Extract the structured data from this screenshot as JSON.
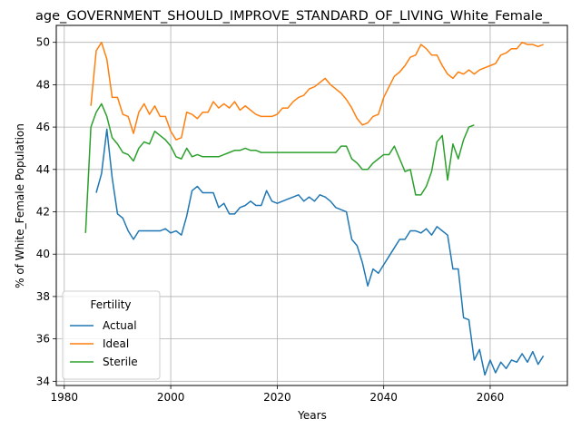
{
  "chart_data": {
    "type": "line",
    "title": "age_GOVERNMENT_SHOULD_IMPROVE_STANDARD_OF_LIVING_White_Female_",
    "xlabel": "Years",
    "ylabel": "% of White_Female Population",
    "xlim": [
      1978.5,
      2074.5
    ],
    "ylim": [
      33.8,
      50.8
    ],
    "xticks": [
      1980,
      2000,
      2020,
      2040,
      2060
    ],
    "yticks": [
      34,
      36,
      38,
      40,
      42,
      44,
      46,
      48,
      50
    ],
    "grid": true,
    "legend": {
      "title": "Fertility",
      "position": "lower-left"
    },
    "series": [
      {
        "name": "Actual",
        "color": "#1f77b4",
        "x": [
          1986,
          1987,
          1988,
          1989,
          1990,
          1991,
          1992,
          1993,
          1994,
          1995,
          1996,
          1997,
          1998,
          1999,
          2000,
          2001,
          2002,
          2003,
          2004,
          2005,
          2006,
          2007,
          2008,
          2009,
          2010,
          2011,
          2012,
          2013,
          2014,
          2015,
          2016,
          2017,
          2018,
          2019,
          2020,
          2021,
          2022,
          2023,
          2024,
          2025,
          2026,
          2027,
          2028,
          2029,
          2030,
          2031,
          2032,
          2033,
          2034,
          2035,
          2036,
          2037,
          2038,
          2039,
          2040,
          2041,
          2042,
          2043,
          2044,
          2045,
          2046,
          2047,
          2048,
          2049,
          2050,
          2051,
          2052,
          2053,
          2054,
          2055,
          2056,
          2057,
          2058,
          2059,
          2060,
          2061,
          2062,
          2063,
          2064,
          2065,
          2066,
          2067,
          2068,
          2069,
          2070
        ],
        "values": [
          42.9,
          43.8,
          45.9,
          43.6,
          41.9,
          41.7,
          41.1,
          40.7,
          41.1,
          41.1,
          41.1,
          41.1,
          41.1,
          41.2,
          41.0,
          41.1,
          40.9,
          41.8,
          43.0,
          43.2,
          42.9,
          42.9,
          42.9,
          42.2,
          42.4,
          41.9,
          41.9,
          42.2,
          42.3,
          42.5,
          42.3,
          42.3,
          43.0,
          42.5,
          42.4,
          42.5,
          42.6,
          42.7,
          42.8,
          42.5,
          42.7,
          42.5,
          42.8,
          42.7,
          42.5,
          42.2,
          42.1,
          42.0,
          40.7,
          40.4,
          39.6,
          38.5,
          39.3,
          39.1,
          39.5,
          39.9,
          40.3,
          40.7,
          40.7,
          41.1,
          41.1,
          41.0,
          41.2,
          40.9,
          41.3,
          41.1,
          40.9,
          39.3,
          39.3,
          37.0,
          36.9,
          35.0,
          35.5,
          34.3,
          35.0,
          34.4,
          34.9,
          34.6,
          35.0,
          34.9,
          35.3,
          34.9,
          35.4,
          34.8,
          35.2
        ]
      },
      {
        "name": "Ideal",
        "color": "#ff7f0e",
        "x": [
          1985,
          1986,
          1987,
          1988,
          1989,
          1990,
          1991,
          1992,
          1993,
          1994,
          1995,
          1996,
          1997,
          1998,
          1999,
          2000,
          2001,
          2002,
          2003,
          2004,
          2005,
          2006,
          2007,
          2008,
          2009,
          2010,
          2011,
          2012,
          2013,
          2014,
          2015,
          2016,
          2017,
          2018,
          2019,
          2020,
          2021,
          2022,
          2023,
          2024,
          2025,
          2026,
          2027,
          2028,
          2029,
          2030,
          2031,
          2032,
          2033,
          2034,
          2035,
          2036,
          2037,
          2038,
          2039,
          2040,
          2041,
          2042,
          2043,
          2044,
          2045,
          2046,
          2047,
          2048,
          2049,
          2050,
          2051,
          2052,
          2053,
          2054,
          2055,
          2056,
          2057,
          2058,
          2059,
          2060,
          2061,
          2062,
          2063,
          2064,
          2065,
          2066,
          2067,
          2068,
          2069,
          2070
        ],
        "values": [
          47.0,
          49.6,
          50.0,
          49.2,
          47.4,
          47.4,
          46.6,
          46.5,
          45.7,
          46.7,
          47.1,
          46.6,
          47.0,
          46.5,
          46.5,
          45.8,
          45.4,
          45.5,
          46.7,
          46.6,
          46.4,
          46.7,
          46.7,
          47.2,
          46.9,
          47.1,
          46.9,
          47.2,
          46.8,
          47.0,
          46.8,
          46.6,
          46.5,
          46.5,
          46.5,
          46.6,
          46.9,
          46.9,
          47.2,
          47.4,
          47.5,
          47.8,
          47.9,
          48.1,
          48.3,
          48.0,
          47.8,
          47.6,
          47.3,
          46.9,
          46.4,
          46.1,
          46.2,
          46.5,
          46.6,
          47.4,
          47.9,
          48.4,
          48.6,
          48.9,
          49.3,
          49.4,
          49.9,
          49.7,
          49.4,
          49.4,
          48.9,
          48.5,
          48.3,
          48.6,
          48.5,
          48.7,
          48.5,
          48.7,
          48.8,
          48.9,
          49.0,
          49.4,
          49.5,
          49.7,
          49.7,
          50.0,
          49.9,
          49.9,
          49.8,
          49.9
        ]
      },
      {
        "name": "Sterile",
        "color": "#2ca02c",
        "x": [
          1984,
          1985,
          1986,
          1987,
          1988,
          1989,
          1990,
          1991,
          1992,
          1993,
          1994,
          1995,
          1996,
          1997,
          1998,
          1999,
          2000,
          2001,
          2002,
          2003,
          2004,
          2005,
          2006,
          2007,
          2008,
          2009,
          2010,
          2011,
          2012,
          2013,
          2014,
          2015,
          2016,
          2017,
          2018,
          2019,
          2020,
          2021,
          2022,
          2023,
          2024,
          2025,
          2026,
          2027,
          2028,
          2029,
          2030,
          2031,
          2032,
          2033,
          2034,
          2035,
          2036,
          2037,
          2038,
          2039,
          2040,
          2041,
          2042,
          2043,
          2044,
          2045,
          2046,
          2047,
          2048,
          2049,
          2050,
          2051,
          2052,
          2053,
          2054,
          2055,
          2056,
          2057
        ],
        "values": [
          41.0,
          46.0,
          46.7,
          47.1,
          46.5,
          45.5,
          45.2,
          44.8,
          44.7,
          44.4,
          45.0,
          45.3,
          45.2,
          45.8,
          45.6,
          45.4,
          45.1,
          44.6,
          44.5,
          45.0,
          44.6,
          44.7,
          44.6,
          44.6,
          44.6,
          44.6,
          44.7,
          44.8,
          44.9,
          44.9,
          45.0,
          44.9,
          44.9,
          44.8,
          44.8,
          44.8,
          44.8,
          44.8,
          44.8,
          44.8,
          44.8,
          44.8,
          44.8,
          44.8,
          44.8,
          44.8,
          44.8,
          44.8,
          45.1,
          45.1,
          44.5,
          44.3,
          44.0,
          44.0,
          44.3,
          44.5,
          44.7,
          44.7,
          45.1,
          44.5,
          43.9,
          44.0,
          42.8,
          42.8,
          43.2,
          43.9,
          45.3,
          45.6,
          43.5,
          45.2,
          44.5,
          45.4,
          46.0,
          46.1
        ]
      }
    ]
  }
}
